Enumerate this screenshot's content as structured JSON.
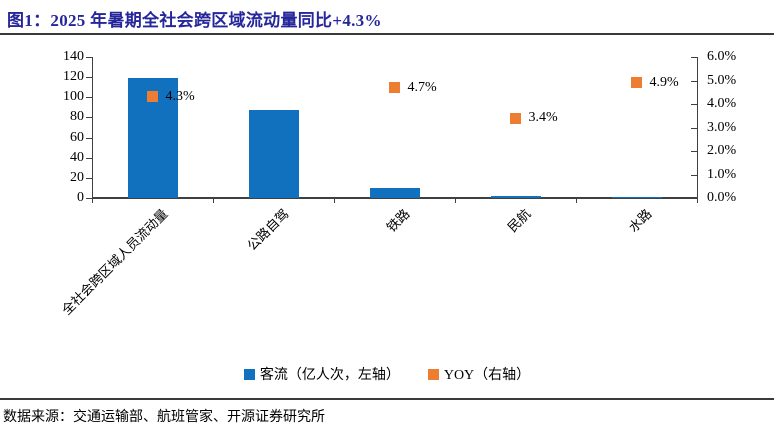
{
  "colors": {
    "title": "#26269B",
    "rule": "#3A3A3A",
    "axis": "#404040",
    "bar": "#1271BE",
    "marker": "#ED7D31",
    "text": "#000000"
  },
  "footer": {
    "source": "数据来源：交通运输部、航班管家、开源证券研究所"
  },
  "chart_data": {
    "type": "bar",
    "title": "图1：2025 年暑期全社会跨区域流动量同比+4.3%",
    "categories": [
      "全社会跨区域人员流动量",
      "公路自驾",
      "铁路",
      "民航",
      "水路"
    ],
    "series": [
      {
        "name": "客流（亿人次，左轴）",
        "type": "bar",
        "axis": "left",
        "color": "#1271BE",
        "values": [
          119,
          87,
          10,
          1.5,
          0.8
        ]
      },
      {
        "name": "YOY（右轴）",
        "type": "scatter",
        "marker": "square",
        "axis": "right",
        "color": "#ED7D31",
        "values": [
          4.3,
          null,
          4.7,
          3.4,
          4.9
        ],
        "point_labels": [
          "4.3%",
          "",
          "4.7%",
          "3.4%",
          "4.9%"
        ]
      }
    ],
    "left_axis": {
      "min": 0,
      "max": 140,
      "step": 20,
      "tick_labels": [
        "0",
        "20",
        "40",
        "60",
        "80",
        "100",
        "120",
        "140"
      ]
    },
    "right_axis": {
      "min": 0,
      "max": 6,
      "step": 1,
      "tick_labels": [
        "0.0%",
        "1.0%",
        "2.0%",
        "3.0%",
        "4.0%",
        "5.0%",
        "6.0%"
      ]
    },
    "legend_position": "bottom",
    "grid": false
  }
}
